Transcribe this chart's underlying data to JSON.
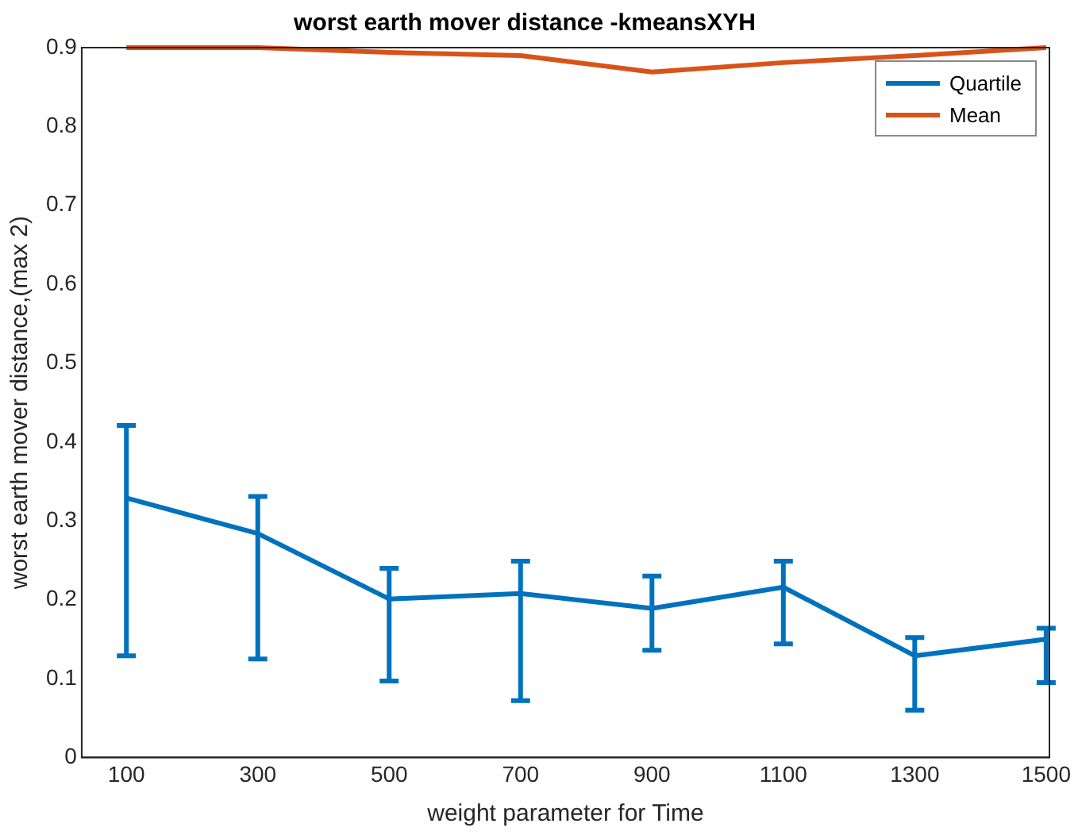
{
  "chart_data": {
    "type": "line",
    "title": "worst earth mover distance -kmeansXYH",
    "xlabel": "weight parameter for Time",
    "ylabel": "worst earth mover distance,(max 2)",
    "x": [
      100,
      300,
      500,
      700,
      900,
      1100,
      1300,
      1500
    ],
    "series": [
      {
        "name": "Quartile",
        "color": "#0072bd",
        "values": [
          0.329,
          0.284,
          0.201,
          0.208,
          0.189,
          0.216,
          0.129,
          0.15
        ],
        "errors": [
          [
            0.129,
            0.421
          ],
          [
            0.125,
            0.331
          ],
          [
            0.097,
            0.24
          ],
          [
            0.072,
            0.249
          ],
          [
            0.136,
            0.23
          ],
          [
            0.144,
            0.249
          ],
          [
            0.06,
            0.152
          ],
          [
            0.095,
            0.164
          ]
        ]
      },
      {
        "name": "Mean",
        "color": "#d95319",
        "values": [
          0.9,
          0.9,
          0.894,
          0.89,
          0.869,
          0.881,
          0.89,
          0.9
        ]
      }
    ],
    "xlim": [
      32,
      1505
    ],
    "xticks": [
      100,
      300,
      500,
      700,
      900,
      1100,
      1300,
      1500
    ],
    "ylim": [
      0,
      0.9
    ],
    "yticks": [
      0,
      0.1,
      0.2,
      0.3,
      0.4,
      0.5,
      0.6,
      0.7,
      0.8,
      0.9
    ],
    "grid": false,
    "legend": "top right",
    "marker": "none",
    "line_style": "solid"
  }
}
